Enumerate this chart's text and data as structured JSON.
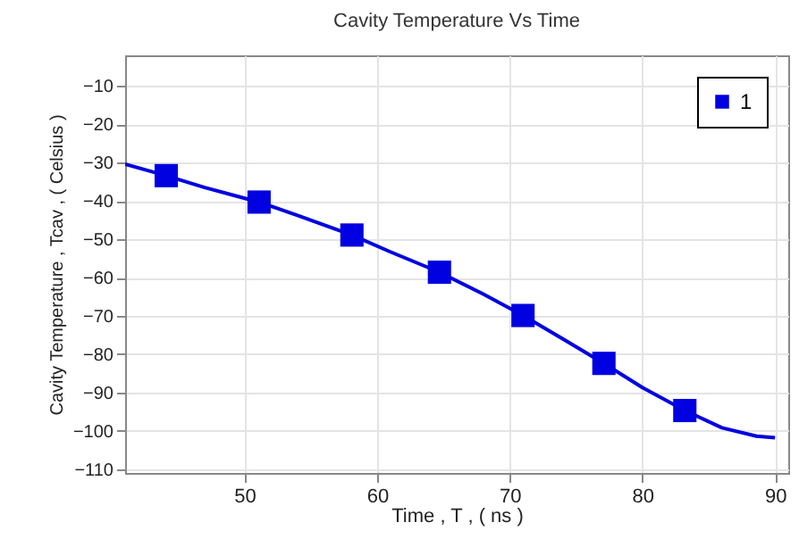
{
  "chart_data": {
    "type": "line",
    "title": "Cavity Temperature Vs Time",
    "xlabel": "Time , T , ( ns )",
    "ylabel": "Cavity Temperature , Tcav , ( Celsius )",
    "xlim": [
      41,
      91
    ],
    "xticks": [
      50,
      60,
      70,
      80,
      90
    ],
    "ylim": [
      -111,
      -2
    ],
    "yticks": [
      -110,
      -100,
      -90,
      -80,
      -70,
      -60,
      -50,
      -40,
      -30,
      -20,
      -10
    ],
    "grid": true,
    "legend": "top right",
    "series": [
      {
        "type": "line",
        "color": "#0000e0",
        "marker": "none",
        "x": [
          41,
          44.1,
          47,
          51.1,
          54,
          58.1,
          61,
          64.7,
          68,
          71,
          74,
          77.1,
          80,
          83.2,
          86,
          88.6,
          90
        ],
        "values": [
          -30.4,
          -33.4,
          -36.5,
          -40.3,
          -43.8,
          -48.9,
          -53.3,
          -58.6,
          -64.3,
          -69.9,
          -76,
          -82.4,
          -88.7,
          -94.7,
          -99.2,
          -101.4,
          -101.8
        ]
      },
      {
        "type": "scatter",
        "name": "1",
        "color": "#0000e0",
        "marker": "square",
        "x": [
          44.1,
          51.1,
          58.1,
          64.7,
          71,
          77.1,
          83.2
        ],
        "values": [
          -33.4,
          -40.3,
          -48.9,
          -58.6,
          -69.9,
          -82.4,
          -94.7
        ]
      }
    ]
  }
}
